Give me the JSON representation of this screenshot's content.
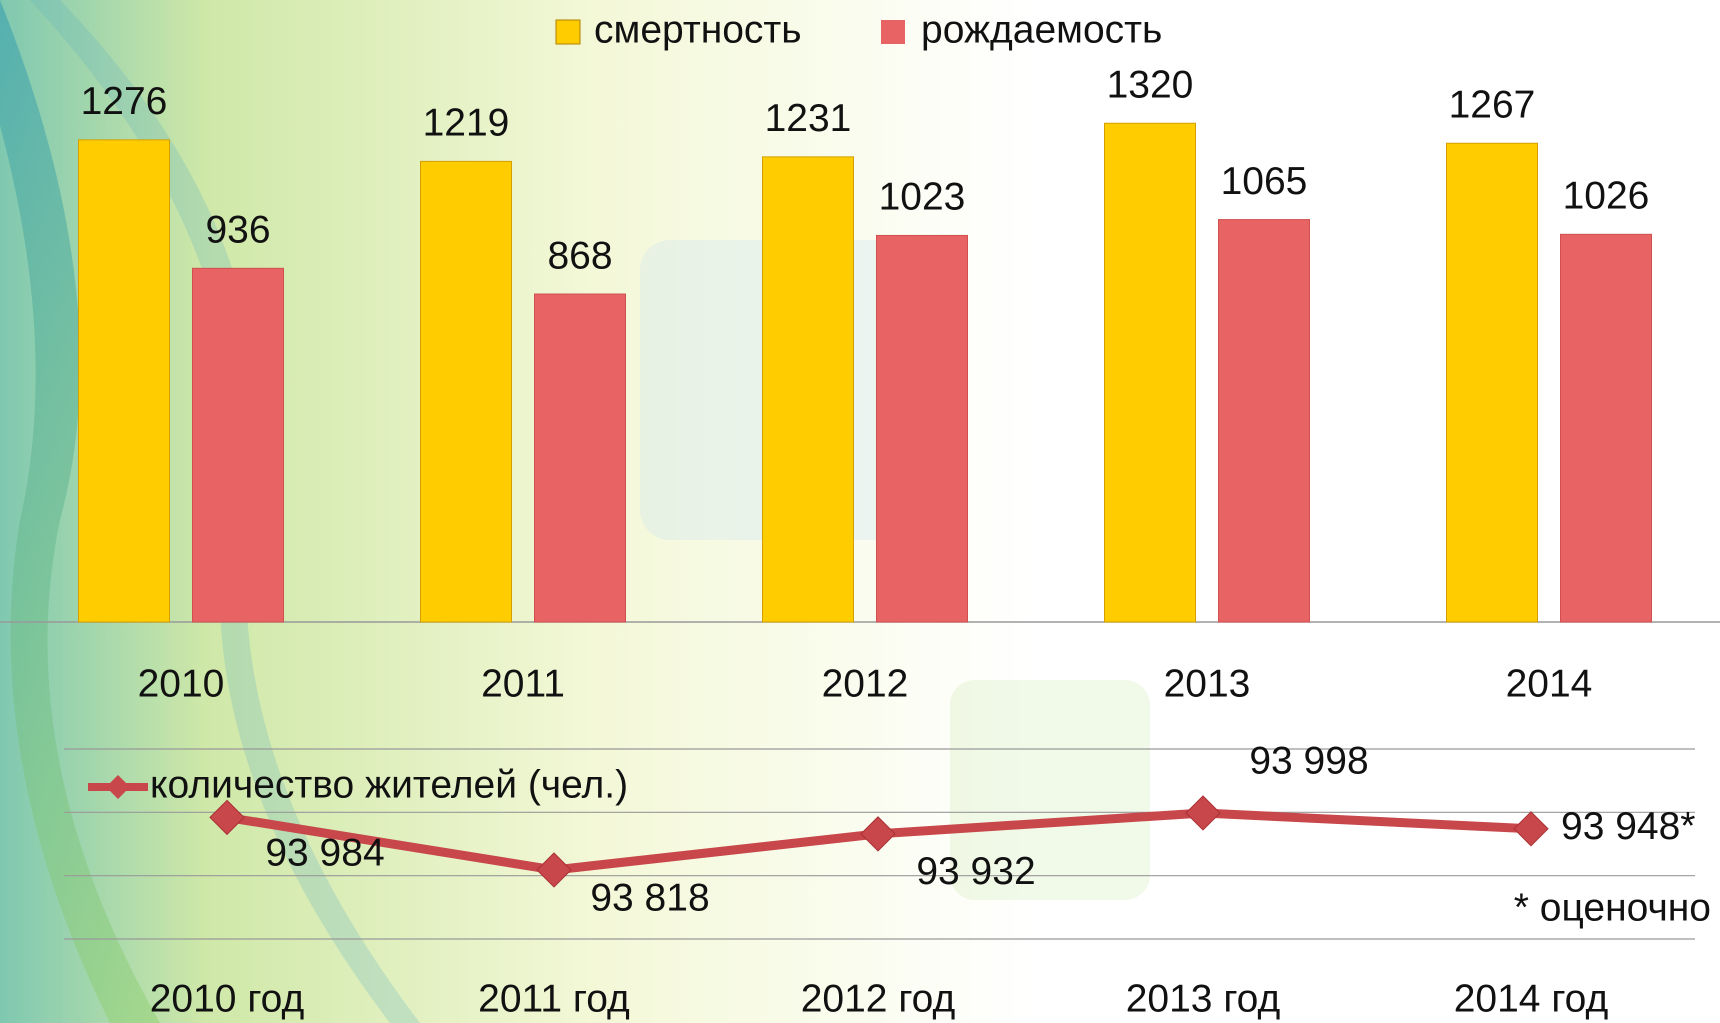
{
  "chart_data": [
    {
      "type": "bar",
      "categories": [
        "2010",
        "2011",
        "2012",
        "2013",
        "2014"
      ],
      "series": [
        {
          "name": "смертность",
          "color": "#ffcc00",
          "values": [
            1276,
            1219,
            1231,
            1320,
            1267
          ]
        },
        {
          "name": "рождаемость",
          "color": "#e86363",
          "values": [
            936,
            868,
            1023,
            1065,
            1026
          ]
        }
      ],
      "ylim": [
        0,
        1400
      ]
    },
    {
      "type": "line",
      "categories": [
        "2010 год",
        "2011 год",
        "2012 год",
        "2013 год",
        "2014 год"
      ],
      "series": [
        {
          "name": "количество жителей (чел.)",
          "color": "#c8474b",
          "values": [
            93984,
            93818,
            93932,
            93998,
            93948
          ],
          "value_labels": [
            "93 984",
            "93 818",
            "93 932",
            "93 998",
            "93 948*"
          ]
        }
      ],
      "ylim": [
        93600,
        94200
      ],
      "yticks": [
        93600,
        93800,
        94000,
        94200
      ],
      "grid": true,
      "annotation": "* оценочно"
    }
  ]
}
